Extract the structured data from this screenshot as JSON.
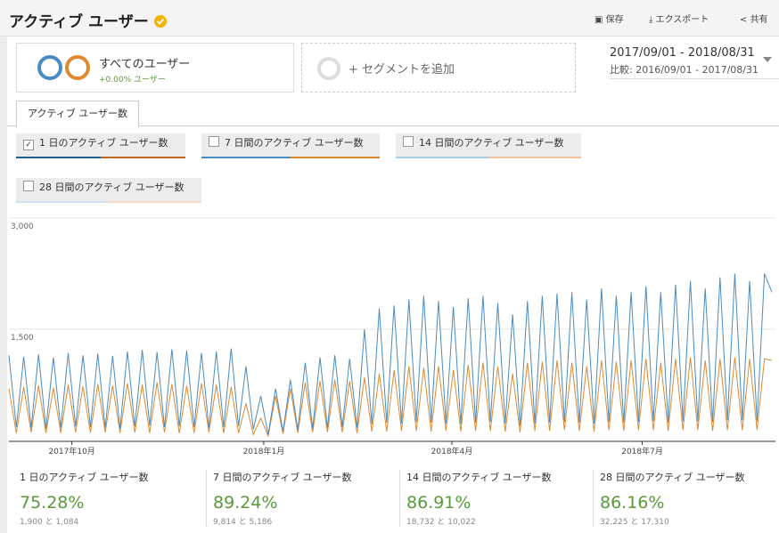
{
  "header": {
    "title": "アクティブ ユーザー",
    "actions": [
      "保存",
      "エクスポート",
      "共有"
    ]
  },
  "segments": [
    {
      "name": "すべてのユーザー",
      "change": "+0.00% ユーザー"
    },
    {
      "name": "+ セグメントを追加"
    }
  ],
  "date_range": {
    "current": "2017/09/01 - 2018/08/31",
    "compare_label": "比較:",
    "compare": "2016/09/01 - 2017/08/31"
  },
  "tab": "アクティブ ユーザー数",
  "metrics": [
    {
      "label": "1 日のアクティブ ユーザー数",
      "checked": true
    },
    {
      "label": "7 日間のアクティブ ユーザー数",
      "checked": false
    },
    {
      "label": "14 日間のアクティブ ユーザー数",
      "checked": false
    },
    {
      "label": "28 日間のアクティブ ユーザー数",
      "checked": false
    }
  ],
  "chart_data": {
    "type": "line",
    "ylim": [
      0,
      3000
    ],
    "yticks": [
      {
        "value": 3000,
        "label": "3,000"
      },
      {
        "value": 1500,
        "label": "1,500"
      }
    ],
    "grid": true,
    "xlim": [
      0,
      103
    ],
    "xticks": [
      {
        "value": 8.5,
        "label": "2017年10月"
      },
      {
        "value": 34.4,
        "label": "2018年1月"
      },
      {
        "value": 59.8,
        "label": "2018年4月"
      },
      {
        "value": 85.5,
        "label": "2018年7月"
      }
    ],
    "series": [
      {
        "color": "#4a8bc0",
        "values": [
          1150,
          180,
          1130,
          170,
          1160,
          160,
          1120,
          170,
          1180,
          190,
          1150,
          180,
          1170,
          170,
          1140,
          160,
          1200,
          190,
          1220,
          200,
          1190,
          180,
          1230,
          190,
          1210,
          180,
          1180,
          170,
          1200,
          180,
          1240,
          190,
          1000,
          150,
          600,
          80,
          700,
          120,
          820,
          140,
          1050,
          160,
          1120,
          170,
          1150,
          180,
          1100,
          170,
          1500,
          220,
          1780,
          240,
          1820,
          230,
          1900,
          250,
          1950,
          240,
          1880,
          230,
          1800,
          220,
          1920,
          240,
          1950,
          250,
          1850,
          230,
          1700,
          200,
          1880,
          230,
          1950,
          240,
          1980,
          250,
          2000,
          240,
          1900,
          230,
          2050,
          250,
          1950,
          240,
          2000,
          250,
          2080,
          260,
          2000,
          240,
          2100,
          260,
          2150,
          260,
          2050,
          250,
          2200,
          270,
          2250,
          270,
          2150,
          260,
          2250,
          2000
        ]
      },
      {
        "color": "#de8a2e",
        "values": [
          700,
          100,
          720,
          110,
          740,
          100,
          710,
          100,
          750,
          110,
          730,
          100,
          760,
          110,
          740,
          100,
          770,
          110,
          750,
          100,
          780,
          110,
          760,
          100,
          740,
          100,
          770,
          110,
          750,
          100,
          720,
          100,
          500,
          80,
          300,
          60,
          600,
          90,
          700,
          100,
          780,
          110,
          800,
          110,
          820,
          110,
          800,
          100,
          850,
          120,
          900,
          120,
          950,
          130,
          1000,
          130,
          980,
          120,
          1000,
          130,
          950,
          120,
          1020,
          130,
          1050,
          130,
          1000,
          120,
          900,
          110,
          1050,
          130,
          1060,
          130,
          1080,
          140,
          1050,
          130,
          1000,
          120,
          1080,
          140,
          1060,
          130,
          1080,
          140,
          1100,
          140,
          1050,
          130,
          1100,
          140,
          1120,
          140,
          1080,
          130,
          1100,
          140,
          1120,
          140,
          1100,
          140,
          1100,
          1080
        ]
      }
    ]
  },
  "summary": [
    {
      "label": "1 日のアクティブ ユーザー数",
      "percent": "75.28%",
      "detail": "1,900 と 1,084"
    },
    {
      "label": "7 日間のアクティブ ユーザー数",
      "percent": "89.24%",
      "detail": "9,814 と 5,186"
    },
    {
      "label": "14 日間のアクティブ ユーザー数",
      "percent": "86.91%",
      "detail": "18,732 と 10,022"
    },
    {
      "label": "28 日間のアクティブ ユーザー数",
      "percent": "86.16%",
      "detail": "32,225 と 17,310"
    }
  ]
}
